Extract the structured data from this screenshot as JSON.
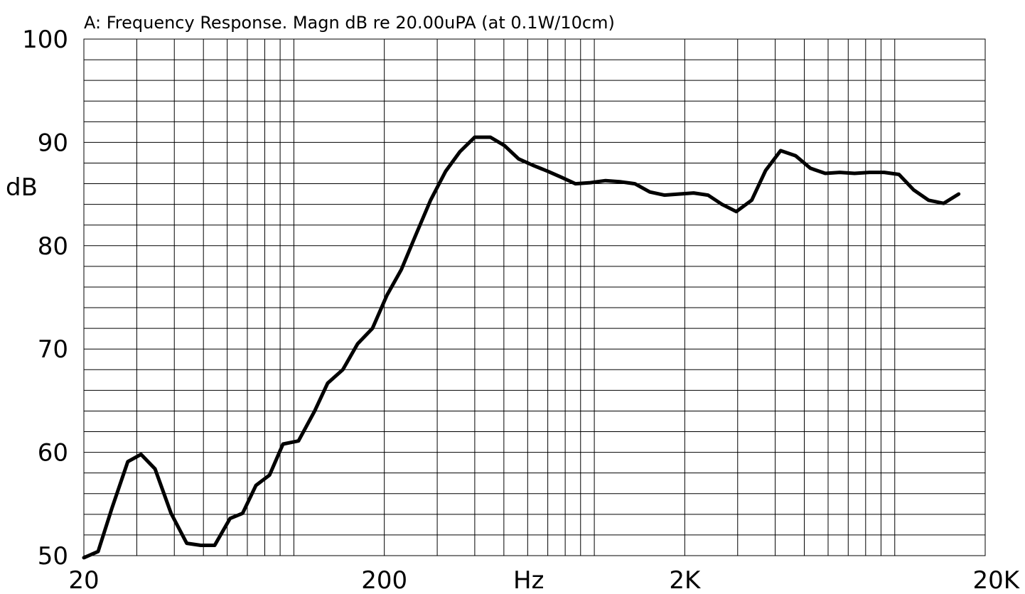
{
  "chart_data": {
    "type": "line",
    "title": "A: Frequency Response. Magn dB re 20.00uPA  (at 0.1W/10cm)",
    "xlabel": "Hz",
    "ylabel": "dB",
    "x_scale": "log",
    "xlim": [
      20,
      20000
    ],
    "ylim": [
      50,
      100
    ],
    "x_ticks": [
      {
        "value": 20,
        "label": "20"
      },
      {
        "value": 200,
        "label": "200"
      },
      {
        "value": 2000,
        "label": "2K"
      },
      {
        "value": 20000,
        "label": "20K"
      }
    ],
    "y_ticks": [
      {
        "value": 100,
        "label": "100"
      },
      {
        "value": 90,
        "label": "90"
      },
      {
        "value": 80,
        "label": "80"
      },
      {
        "value": 70,
        "label": "70"
      },
      {
        "value": 60,
        "label": "60"
      },
      {
        "value": 50,
        "label": "50"
      }
    ],
    "grid": true,
    "x_grid_values": [
      20,
      30,
      40,
      50,
      60,
      70,
      80,
      90,
      100,
      200,
      300,
      400,
      500,
      600,
      700,
      800,
      900,
      1000,
      2000,
      3000,
      4000,
      5000,
      6000,
      7000,
      8000,
      9000,
      10000,
      20000
    ],
    "y_grid_step": 2,
    "series": [
      {
        "points": [
          [
            20,
            49.8
          ],
          [
            22.3,
            50.4
          ],
          [
            24.8,
            54.6
          ],
          [
            28,
            59.1
          ],
          [
            31,
            59.8
          ],
          [
            34.5,
            58.4
          ],
          [
            39,
            54.1
          ],
          [
            44,
            51.2
          ],
          [
            49,
            51.0
          ],
          [
            54.5,
            51.0
          ],
          [
            61.3,
            53.6
          ],
          [
            67.5,
            54.1
          ],
          [
            74.8,
            56.8
          ],
          [
            83,
            57.8
          ],
          [
            92,
            60.8
          ],
          [
            103.6,
            61.1
          ],
          [
            117.3,
            64.0
          ],
          [
            129.6,
            66.7
          ],
          [
            145.5,
            68.0
          ],
          [
            163,
            70.5
          ],
          [
            182.6,
            72.0
          ],
          [
            204,
            75.2
          ],
          [
            228,
            77.7
          ],
          [
            255,
            81.1
          ],
          [
            285,
            84.4
          ],
          [
            320,
            87.2
          ],
          [
            357,
            89.1
          ],
          [
            400,
            90.5
          ],
          [
            451,
            90.5
          ],
          [
            502,
            89.7
          ],
          [
            560,
            88.4
          ],
          [
            623,
            87.8
          ],
          [
            700,
            87.2
          ],
          [
            780,
            86.6
          ],
          [
            865,
            86.0
          ],
          [
            970,
            86.1
          ],
          [
            1090,
            86.3
          ],
          [
            1215,
            86.2
          ],
          [
            1364,
            86.0
          ],
          [
            1530,
            85.2
          ],
          [
            1710,
            84.9
          ],
          [
            1910,
            85.0
          ],
          [
            2140,
            85.1
          ],
          [
            2390,
            84.9
          ],
          [
            2660,
            84.0
          ],
          [
            2970,
            83.3
          ],
          [
            3340,
            84.4
          ],
          [
            3720,
            87.3
          ],
          [
            4170,
            89.2
          ],
          [
            4680,
            88.7
          ],
          [
            5240,
            87.5
          ],
          [
            5870,
            87.0
          ],
          [
            6560,
            87.1
          ],
          [
            7350,
            87.0
          ],
          [
            8240,
            87.1
          ],
          [
            9220,
            87.1
          ],
          [
            10330,
            86.9
          ],
          [
            11560,
            85.4
          ],
          [
            12960,
            84.4
          ],
          [
            14540,
            84.1
          ],
          [
            16320,
            85.0
          ]
        ]
      }
    ]
  }
}
